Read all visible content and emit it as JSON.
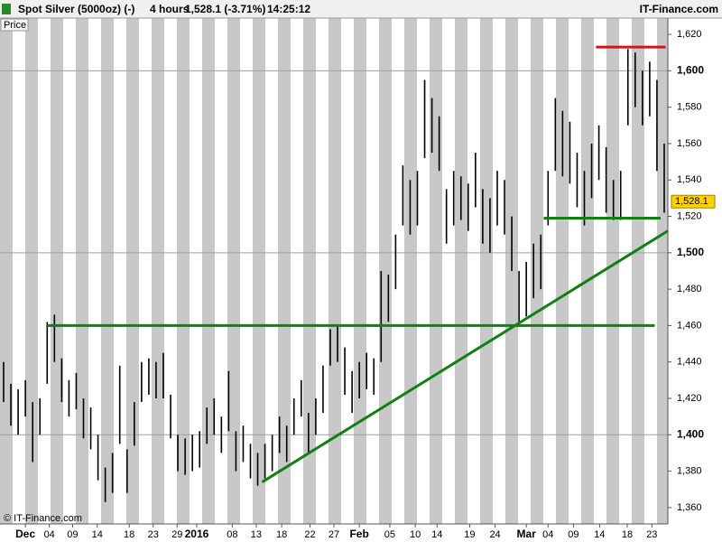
{
  "chart_data": {
    "type": "ohlc",
    "title_parts": [
      "Spot Silver (5000oz) (-)",
      "4 hours",
      "1,528.1 (-3.71%)",
      "14:25:12"
    ],
    "brand": "IT-Finance.com",
    "copyright": "© IT-Finance.com",
    "y_label": "Price",
    "color": "#000000",
    "xlim": [
      -0.5,
      91.5
    ],
    "ylim": [
      1351,
      1625
    ],
    "grid": true,
    "yticks": [
      {
        "value": 1360,
        "label": "1,360"
      },
      {
        "value": 1380,
        "label": "1,380"
      },
      {
        "value": 1400,
        "label": "1,400"
      },
      {
        "value": 1420,
        "label": "1,420"
      },
      {
        "value": 1440,
        "label": "1,440"
      },
      {
        "value": 1460,
        "label": "1,460"
      },
      {
        "value": 1480,
        "label": "1,480"
      },
      {
        "value": 1500,
        "label": "1,500"
      },
      {
        "value": 1520,
        "label": "1,520"
      },
      {
        "value": 1540,
        "label": "1,540"
      },
      {
        "value": 1560,
        "label": "1,560"
      },
      {
        "value": 1580,
        "label": "1,580"
      },
      {
        "value": 1600,
        "label": "1,600"
      },
      {
        "value": 1620,
        "label": "1,620"
      }
    ],
    "xticks": [
      {
        "value": 3,
        "label": "Dec",
        "major": true
      },
      {
        "value": 6.3,
        "label": "04"
      },
      {
        "value": 9.5,
        "label": "09"
      },
      {
        "value": 12.9,
        "label": "14"
      },
      {
        "value": 17.3,
        "label": "18"
      },
      {
        "value": 20.6,
        "label": "23"
      },
      {
        "value": 23.9,
        "label": "29"
      },
      {
        "value": 26.6,
        "label": "2016",
        "major": true
      },
      {
        "value": 31.5,
        "label": "08"
      },
      {
        "value": 34.8,
        "label": "13"
      },
      {
        "value": 38.3,
        "label": "18"
      },
      {
        "value": 42.2,
        "label": "22"
      },
      {
        "value": 45.5,
        "label": "27"
      },
      {
        "value": 49,
        "label": "Feb",
        "major": true
      },
      {
        "value": 53.2,
        "label": "05"
      },
      {
        "value": 56.7,
        "label": "10"
      },
      {
        "value": 59.7,
        "label": "14"
      },
      {
        "value": 64.2,
        "label": "19"
      },
      {
        "value": 67.7,
        "label": "24"
      },
      {
        "value": 72,
        "label": "Mar",
        "major": true
      },
      {
        "value": 75,
        "label": "04"
      },
      {
        "value": 78.5,
        "label": "09"
      },
      {
        "value": 82.1,
        "label": "14"
      },
      {
        "value": 85.9,
        "label": "18"
      },
      {
        "value": 89.3,
        "label": "23"
      }
    ],
    "high": [
      1440,
      1428,
      1425,
      1430,
      1418,
      1420,
      1462,
      1466,
      1442,
      1430,
      1434,
      1420,
      1415,
      1400,
      1382,
      1390,
      1438,
      1392,
      1418,
      1440,
      1442,
      1440,
      1445,
      1422,
      1400,
      1398,
      1400,
      1402,
      1415,
      1420,
      1410,
      1435,
      1402,
      1405,
      1395,
      1390,
      1395,
      1400,
      1410,
      1405,
      1420,
      1430,
      1412,
      1420,
      1438,
      1458,
      1460,
      1448,
      1435,
      1440,
      1445,
      1442,
      1490,
      1488,
      1510,
      1548,
      1540,
      1545,
      1595,
      1585,
      1575,
      1535,
      1545,
      1542,
      1538,
      1555,
      1535,
      1530,
      1545,
      1540,
      1520,
      1490,
      1495,
      1505,
      1510,
      1545,
      1585,
      1578,
      1572,
      1555,
      1545,
      1560,
      1570,
      1558,
      1540,
      1545,
      1612,
      1610,
      1600,
      1605,
      1595,
      1560
    ],
    "low": [
      1418,
      1405,
      1400,
      1410,
      1385,
      1400,
      1428,
      1440,
      1418,
      1410,
      1414,
      1398,
      1392,
      1375,
      1363,
      1368,
      1395,
      1368,
      1394,
      1418,
      1422,
      1420,
      1420,
      1398,
      1380,
      1378,
      1380,
      1382,
      1395,
      1400,
      1390,
      1402,
      1380,
      1385,
      1376,
      1372,
      1376,
      1380,
      1390,
      1385,
      1400,
      1410,
      1390,
      1400,
      1412,
      1438,
      1440,
      1422,
      1412,
      1420,
      1425,
      1422,
      1440,
      1462,
      1480,
      1515,
      1510,
      1515,
      1552,
      1555,
      1545,
      1505,
      1515,
      1518,
      1512,
      1525,
      1505,
      1500,
      1515,
      1510,
      1490,
      1462,
      1465,
      1475,
      1480,
      1515,
      1545,
      1542,
      1538,
      1525,
      1515,
      1530,
      1540,
      1522,
      1518,
      1518,
      1570,
      1580,
      1570,
      1575,
      1545,
      1522
    ],
    "last_price": {
      "value": 1528.1,
      "label": "1,528.1"
    },
    "lines": [
      {
        "color": "#108010",
        "x": [
          6,
          89.7
        ],
        "y": [
          1460,
          1460
        ]
      },
      {
        "color": "#108010",
        "x": [
          35.6,
          91.5
        ],
        "y": [
          1374,
          1512
        ]
      },
      {
        "color": "#108010",
        "x": [
          74.4,
          90.5
        ],
        "y": [
          1519,
          1519
        ]
      },
      {
        "color": "#e01010",
        "x": [
          81.6,
          91.2
        ],
        "y": [
          1613,
          1613
        ]
      }
    ]
  }
}
